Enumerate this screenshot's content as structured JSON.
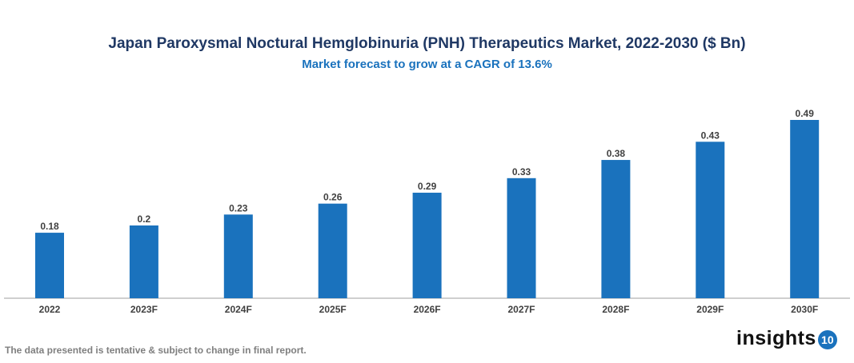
{
  "chart_data": {
    "type": "bar",
    "title": "Japan Paroxysmal Noctural Hemglobinuria (PNH) Therapeutics Market, 2022-2030 ($ Bn)",
    "subtitle": "Market forecast to grow at a CAGR of 13.6%",
    "categories": [
      "2022",
      "2023F",
      "2024F",
      "2025F",
      "2026F",
      "2027F",
      "2028F",
      "2029F",
      "2030F"
    ],
    "values": [
      0.18,
      0.2,
      0.23,
      0.26,
      0.29,
      0.33,
      0.38,
      0.43,
      0.49
    ],
    "xlabel": "",
    "ylabel": "",
    "ylim": [
      0,
      0.49
    ],
    "grid": false,
    "legend": "none",
    "bar_color": "#1a72bd"
  },
  "footnote": "The data presented is tentative & subject to change in final report.",
  "logo": {
    "text": "insights",
    "badge": "10"
  }
}
